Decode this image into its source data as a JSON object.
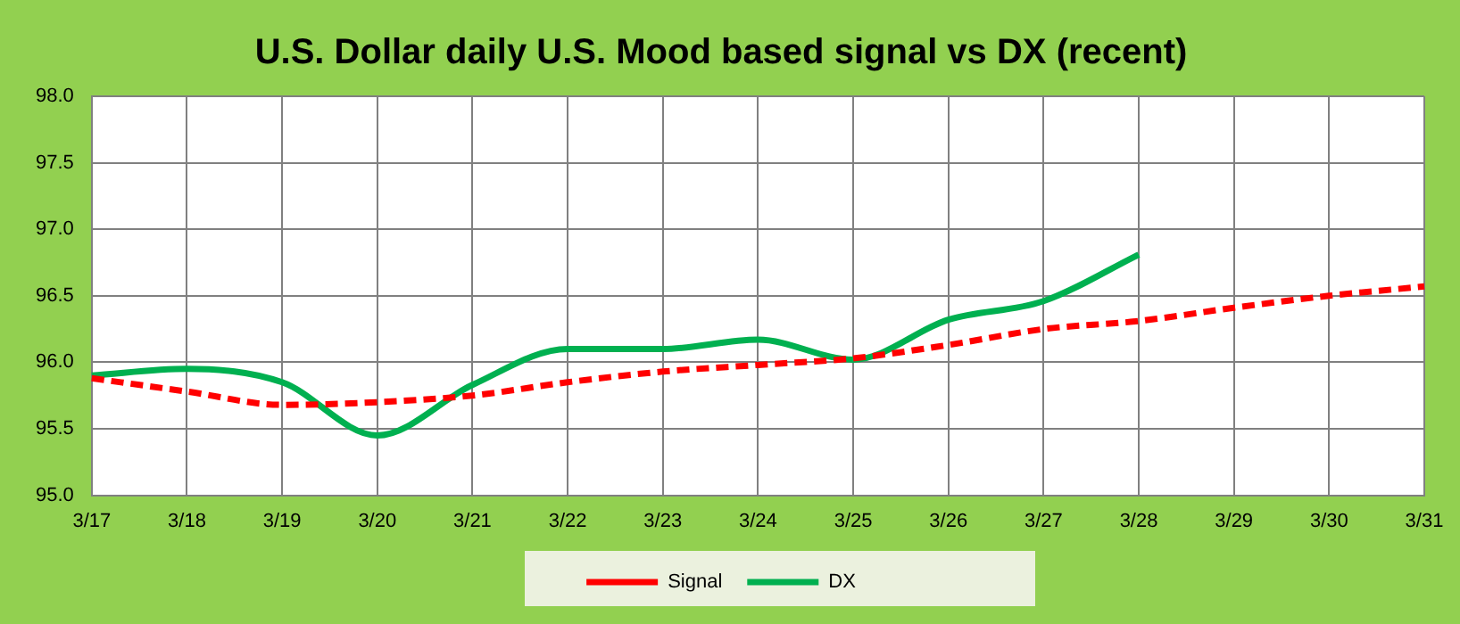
{
  "chart_data": {
    "type": "line",
    "title": "U.S. Dollar daily U.S. Mood based signal vs DX (recent)",
    "categories": [
      "3/17",
      "3/18",
      "3/19",
      "3/20",
      "3/21",
      "3/22",
      "3/23",
      "3/24",
      "3/25",
      "3/26",
      "3/27",
      "3/28",
      "3/29",
      "3/30",
      "3/31"
    ],
    "series": [
      {
        "name": "Signal",
        "color": "#ff0000",
        "line_style": "dashed",
        "values": [
          95.88,
          95.78,
          95.68,
          95.7,
          95.75,
          95.85,
          95.93,
          95.98,
          96.03,
          96.13,
          96.25,
          96.31,
          96.41,
          96.5,
          96.57
        ]
      },
      {
        "name": "DX",
        "color": "#00b050",
        "line_style": "solid",
        "values": [
          95.9,
          95.95,
          95.85,
          95.45,
          95.83,
          96.1,
          96.1,
          96.17,
          96.02,
          96.32,
          96.46,
          96.81,
          null,
          null,
          null
        ]
      }
    ],
    "ylim": [
      95.0,
      98.0
    ],
    "yticks": [
      {
        "value": 95,
        "label": "95.0"
      },
      {
        "value": 95.5,
        "label": "95.5"
      },
      {
        "value": 96,
        "label": "96.0"
      },
      {
        "value": 96.5,
        "label": "96.5"
      },
      {
        "value": 97,
        "label": "97.0"
      },
      {
        "value": 97.5,
        "label": "97.5"
      },
      {
        "value": 98,
        "label": "98.0"
      }
    ],
    "grid": true,
    "legend": "bottom",
    "marker": "none"
  }
}
